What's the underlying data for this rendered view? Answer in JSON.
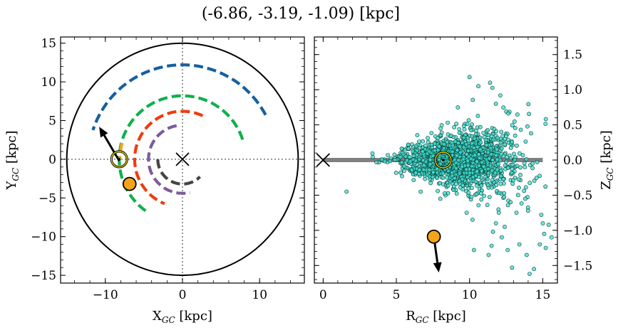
{
  "title": "(-6.86, -3.19, -1.09) [kpc]",
  "chart_data": [
    {
      "type": "line",
      "panel": "left",
      "xlabel": "X",
      "xlabel_sub": "GC",
      "xlabel_unit": "[kpc]",
      "ylabel": "Y",
      "ylabel_sub": "GC",
      "ylabel_unit": "[kpc]",
      "xlim": [
        -15.8,
        15.8
      ],
      "ylim": [
        -16.0,
        15.8
      ],
      "xticks": [
        -10,
        0,
        10
      ],
      "yticks": [
        -15,
        -10,
        -5,
        0,
        5,
        10,
        15
      ],
      "xtick_labels": [
        "−10",
        "0",
        "10"
      ],
      "ytick_labels": [
        "−15",
        "−10",
        "−5",
        "0",
        "5",
        "10",
        "15"
      ],
      "boundary_circle_radius": 15,
      "galactic_center": {
        "x": 0,
        "y": 0,
        "marker": "x"
      },
      "sun": {
        "x": -8.2,
        "y": 0
      },
      "star": {
        "x": -6.86,
        "y": -3.19,
        "color": "#f5a418"
      },
      "velocity_arrow": {
        "from": [
          -8.2,
          -0.2
        ],
        "to": [
          -10.8,
          4.2
        ]
      },
      "spiral_arms": [
        {
          "color": "#1560a0",
          "radius": 12.2,
          "start_deg": 28,
          "end_deg": 162
        },
        {
          "color": "#0db14b",
          "radius": 8.2,
          "start_deg": 18,
          "end_deg": 238
        },
        {
          "color": "#ee3c10",
          "radius": 6.2,
          "start_deg": 65,
          "end_deg": 248
        },
        {
          "color": "#7d5a9d",
          "radius": 4.4,
          "start_deg": 100,
          "end_deg": 283
        },
        {
          "color": "#444444",
          "radius": 3.2,
          "start_deg": 180,
          "end_deg": 315
        },
        {
          "color": "#f5a418",
          "radius": 8.1,
          "start_deg": 165,
          "end_deg": 180
        }
      ]
    },
    {
      "type": "scatter",
      "panel": "right",
      "xlabel": "R",
      "xlabel_sub": "GC",
      "xlabel_unit": "[kpc]",
      "ylabel": "Z",
      "ylabel_sub": "GC",
      "ylabel_unit": "[kpc]",
      "xlim": [
        -0.6,
        16.0
      ],
      "ylim": [
        -1.75,
        1.75
      ],
      "xticks": [
        0,
        5,
        10,
        15
      ],
      "yticks": [
        -1.5,
        -1.0,
        -0.5,
        0.0,
        0.5,
        1.0,
        1.5
      ],
      "xtick_labels": [
        "0",
        "5",
        "10",
        "15"
      ],
      "ytick_labels": [
        "−1.5",
        "−1.0",
        "−0.5",
        "0.0",
        "0.5",
        "1.0",
        "1.5"
      ],
      "disk_line": {
        "x": [
          0,
          15
        ],
        "y": 0,
        "color": "#808080"
      },
      "galactic_center": {
        "x": 0,
        "y": 0,
        "marker": "x"
      },
      "sun": {
        "x": 8.2,
        "y": 0
      },
      "star": {
        "x": 7.56,
        "y": -1.09,
        "color": "#f5a418"
      },
      "velocity_arrow": {
        "from": [
          7.6,
          -1.15
        ],
        "to": [
          7.9,
          -1.6
        ]
      },
      "scatter_color": "#40e0d0",
      "scatter_points_note": "dense cloud of ~1500 disk stars, R 3–15.5 kpc, Z ±0.6 with outliers",
      "outliers": [
        [
          10.0,
          1.18
        ],
        [
          10.6,
          1.05
        ],
        [
          11.4,
          1.1
        ],
        [
          12.1,
          0.92
        ],
        [
          9.2,
          0.75
        ],
        [
          11.8,
          0.8
        ],
        [
          13.5,
          0.43
        ],
        [
          14.2,
          0.38
        ],
        [
          15.6,
          -1.1
        ],
        [
          15.2,
          -1.25
        ],
        [
          14.8,
          -1.2
        ],
        [
          14.4,
          -1.55
        ],
        [
          14.1,
          -1.62
        ],
        [
          13.9,
          -1.35
        ],
        [
          13.4,
          -1.2
        ],
        [
          12.6,
          -1.28
        ],
        [
          12.2,
          -1.1
        ],
        [
          11.5,
          -1.22
        ],
        [
          11.3,
          -1.35
        ],
        [
          10.3,
          -1.28
        ],
        [
          11.6,
          -1.02
        ],
        [
          11.8,
          -0.9
        ],
        [
          12.4,
          -0.95
        ],
        [
          13.2,
          -0.75
        ],
        [
          14.0,
          -0.72
        ],
        [
          14.9,
          -0.78
        ],
        [
          15.4,
          -0.92
        ],
        [
          15.0,
          -0.9
        ],
        [
          13.8,
          -0.55
        ],
        [
          12.8,
          -0.6
        ],
        [
          12.0,
          -0.75
        ],
        [
          9.8,
          -0.75
        ],
        [
          10.2,
          -0.85
        ],
        [
          8.0,
          -0.55
        ],
        [
          1.6,
          -0.45
        ],
        [
          12.9,
          -1.53
        ],
        [
          15.1,
          -1.05
        ]
      ]
    }
  ]
}
